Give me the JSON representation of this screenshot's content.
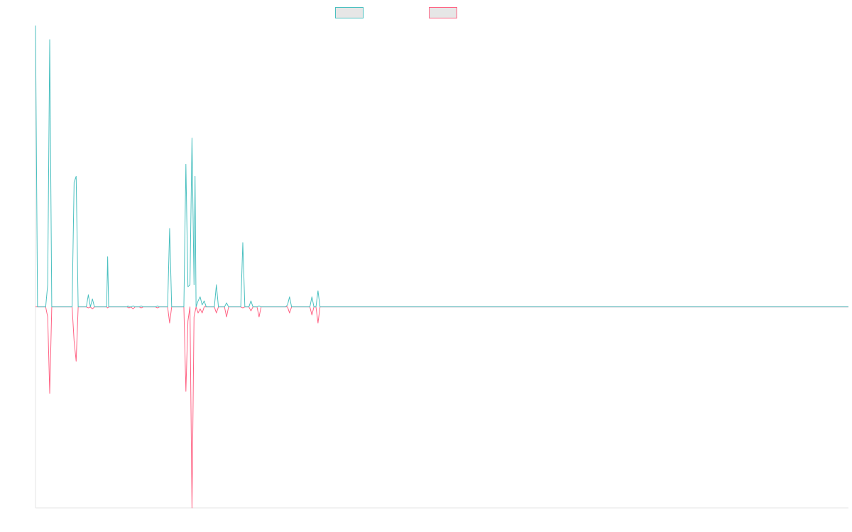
{
  "chart_data": {
    "type": "line",
    "title": "",
    "xlabel": "",
    "ylabel": "",
    "grid": false,
    "legend": "top-center",
    "x_count": 401,
    "ylim": [
      -1.0,
      1.4
    ],
    "series": [
      {
        "key": "series_a",
        "color": "#4bc0c0",
        "fill": "#e6e6e6",
        "points": [
          [
            0,
            1.4
          ],
          [
            1,
            0
          ],
          [
            2,
            0
          ],
          [
            3,
            0
          ],
          [
            4,
            0
          ],
          [
            5,
            0
          ],
          [
            6,
            0.11
          ],
          [
            7,
            1.33
          ],
          [
            8,
            0
          ],
          [
            18,
            0
          ],
          [
            19,
            0.62
          ],
          [
            20,
            0.65
          ],
          [
            21,
            0
          ],
          [
            25,
            0
          ],
          [
            26,
            0.06
          ],
          [
            27,
            0
          ],
          [
            28,
            0.04
          ],
          [
            29,
            0
          ],
          [
            35,
            0
          ],
          [
            35.5,
            0.25
          ],
          [
            36,
            0
          ],
          [
            45,
            0
          ],
          [
            45.5,
            0.005
          ],
          [
            46,
            0
          ],
          [
            47,
            0
          ],
          [
            48,
            0.005
          ],
          [
            49,
            0
          ],
          [
            51,
            0
          ],
          [
            52,
            0.005
          ],
          [
            53,
            0
          ],
          [
            59,
            0
          ],
          [
            60,
            0.005
          ],
          [
            61,
            0
          ],
          [
            65,
            0
          ],
          [
            66,
            0.39
          ],
          [
            67,
            0
          ],
          [
            73,
            0
          ],
          [
            74,
            0.71
          ],
          [
            75,
            0.1
          ],
          [
            76,
            0.11
          ],
          [
            77,
            0.84
          ],
          [
            78,
            0.11
          ],
          [
            78.5,
            0.65
          ],
          [
            79,
            0
          ],
          [
            80,
            0.03
          ],
          [
            81,
            0.05
          ],
          [
            82,
            0.01
          ],
          [
            83,
            0.03
          ],
          [
            84,
            0
          ],
          [
            88,
            0
          ],
          [
            89,
            0.11
          ],
          [
            90,
            0
          ],
          [
            93,
            0
          ],
          [
            94,
            0.02
          ],
          [
            95,
            0
          ],
          [
            101,
            0
          ],
          [
            102,
            0.32
          ],
          [
            103,
            0
          ],
          [
            105,
            0
          ],
          [
            106,
            0.03
          ],
          [
            107,
            0
          ],
          [
            109,
            0
          ],
          [
            110,
            0.005
          ],
          [
            111,
            0
          ],
          [
            123,
            0
          ],
          [
            124,
            0.01
          ],
          [
            125,
            0.05
          ],
          [
            126,
            0
          ],
          [
            135,
            0
          ],
          [
            136,
            0.05
          ],
          [
            137,
            0
          ],
          [
            138,
            0
          ],
          [
            139,
            0.08
          ],
          [
            140,
            0
          ],
          [
            400,
            0
          ]
        ]
      },
      {
        "key": "series_b",
        "color": "#ff6384",
        "fill": "#e6e6e6",
        "points": [
          [
            0,
            0
          ],
          [
            1,
            0
          ],
          [
            2,
            0
          ],
          [
            3,
            0
          ],
          [
            4,
            0
          ],
          [
            5,
            0
          ],
          [
            6,
            -0.05
          ],
          [
            7,
            -0.43
          ],
          [
            8,
            0
          ],
          [
            18,
            0
          ],
          [
            19,
            -0.17
          ],
          [
            20,
            -0.27
          ],
          [
            21,
            0
          ],
          [
            25,
            0
          ],
          [
            26,
            -0.005
          ],
          [
            27,
            0
          ],
          [
            28,
            -0.01
          ],
          [
            29,
            0
          ],
          [
            35,
            0
          ],
          [
            35.5,
            -0.005
          ],
          [
            36,
            0
          ],
          [
            45,
            0
          ],
          [
            46,
            -0.005
          ],
          [
            47,
            0
          ],
          [
            48,
            -0.01
          ],
          [
            49,
            0
          ],
          [
            51,
            0
          ],
          [
            52,
            -0.005
          ],
          [
            53,
            0
          ],
          [
            59,
            0
          ],
          [
            60,
            -0.005
          ],
          [
            61,
            0
          ],
          [
            65,
            0
          ],
          [
            66,
            -0.08
          ],
          [
            67,
            0
          ],
          [
            73,
            0
          ],
          [
            74,
            -0.42
          ],
          [
            75,
            -0.07
          ],
          [
            76,
            0
          ],
          [
            77,
            -1.0
          ],
          [
            78,
            -0.05
          ],
          [
            79,
            0
          ],
          [
            80,
            -0.03
          ],
          [
            81,
            -0.01
          ],
          [
            82,
            -0.03
          ],
          [
            83,
            0
          ],
          [
            84,
            0
          ],
          [
            88,
            0
          ],
          [
            89,
            -0.03
          ],
          [
            90,
            0
          ],
          [
            93,
            0
          ],
          [
            94,
            -0.05
          ],
          [
            95,
            0
          ],
          [
            101,
            0
          ],
          [
            102,
            -0.005
          ],
          [
            103,
            0
          ],
          [
            105,
            0
          ],
          [
            106,
            -0.02
          ],
          [
            107,
            0
          ],
          [
            109,
            0
          ],
          [
            110,
            -0.05
          ],
          [
            111,
            0
          ],
          [
            124,
            0
          ],
          [
            125,
            -0.03
          ],
          [
            126,
            0
          ],
          [
            135,
            0
          ],
          [
            136,
            -0.04
          ],
          [
            137,
            0
          ],
          [
            138,
            0
          ],
          [
            139,
            -0.08
          ],
          [
            140,
            0
          ],
          [
            400,
            0
          ]
        ]
      }
    ]
  }
}
